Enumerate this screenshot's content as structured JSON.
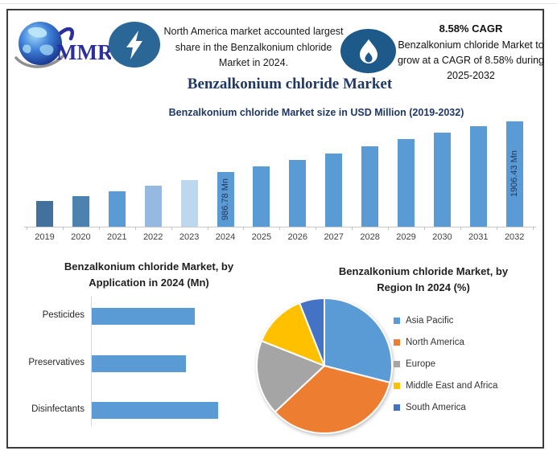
{
  "header": {
    "logo_text": "MMR",
    "highlight_note": "North America market accounted largest share in the Benzalkonium chloride Market in 2024.",
    "cagr_title": "8.58% CAGR",
    "cagr_note": "Benzalkonium chloride Market to grow at a CAGR of 8.58% during 2025-2032"
  },
  "main_title": "Benzalkonium chloride Market",
  "section_titles": {
    "application_line1": "Benzalkonium chloride Market, by",
    "application_line2": "Application in 2024 (Mn)",
    "region_line1": "Benzalkonium chloride Market, by",
    "region_line2": "Region In 2024 (%)"
  },
  "chart_data": [
    {
      "type": "bar",
      "title": "Benzalkonium chloride Market size in USD Million (2019-2032)",
      "categories": [
        "2019",
        "2020",
        "2021",
        "2022",
        "2023",
        "2024",
        "2025",
        "2026",
        "2027",
        "2028",
        "2029",
        "2030",
        "2031",
        "2032"
      ],
      "values": [
        465,
        550,
        635,
        735,
        840,
        986.78,
        1090,
        1205,
        1330,
        1455,
        1580,
        1700,
        1815,
        1906.43
      ],
      "data_labels": {
        "2024": "986.78 Mn",
        "2032": "1906.43 Mn"
      },
      "bar_colors": [
        "#41719C",
        "#4C81B0",
        "#5B9BD5",
        "#95B9E0",
        "#BDD7EE",
        "#5B9BD5",
        "#5B9BD5",
        "#5B9BD5",
        "#5B9BD5",
        "#5B9BD5",
        "#5B9BD5",
        "#5B9BD5",
        "#5B9BD5",
        "#5B9BD5"
      ],
      "ylim": [
        0,
        2000
      ],
      "unit": "USD Million",
      "grid": false
    },
    {
      "type": "bar",
      "orientation": "horizontal",
      "title": "Benzalkonium chloride Market, by Application in 2024 (Mn)",
      "categories": [
        "Pesticides",
        "Preservatives",
        "Disinfectants"
      ],
      "values": [
        315,
        288,
        386
      ],
      "color": "#5B9BD5",
      "xlim": [
        0,
        475
      ],
      "grid": false
    },
    {
      "type": "pie",
      "title": "Benzalkonium chloride Market, by Region In 2024 (%)",
      "labels": [
        "Asia Pacific",
        "North America",
        "Europe",
        "Middle East and Africa",
        "South America"
      ],
      "values": [
        29,
        34,
        18,
        13,
        6
      ],
      "colors": [
        "#5B9BD5",
        "#ED7D31",
        "#A5A5A5",
        "#FFC000",
        "#4472C4"
      ],
      "start_angle_deg": 0,
      "direction": "clockwise",
      "legend_position": "right"
    }
  ],
  "colors": {
    "accent_navy": "#1F3864",
    "bar_blue": "#5B9BD5",
    "lightning_badge": "#2A6796",
    "flame_badge": "#1D5A8A",
    "frame_border": "#3C3C3C"
  }
}
